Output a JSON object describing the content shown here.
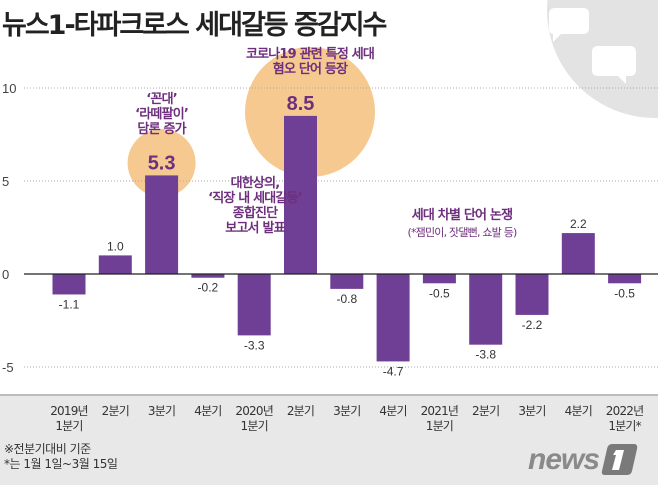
{
  "chart_data": {
    "type": "bar",
    "title": "뉴스1-타파크로스 세대갈등 증감지수",
    "categories": [
      [
        "2019년",
        "1분기"
      ],
      [
        "2분기"
      ],
      [
        "3분기"
      ],
      [
        "4분기"
      ],
      [
        "2020년",
        "1분기"
      ],
      [
        "2분기"
      ],
      [
        "3분기"
      ],
      [
        "4분기"
      ],
      [
        "2021년",
        "1분기"
      ],
      [
        "2분기"
      ],
      [
        "3분기"
      ],
      [
        "4분기"
      ],
      [
        "2022년",
        "1분기*"
      ]
    ],
    "values": [
      -1.1,
      1.0,
      5.3,
      -0.2,
      -3.3,
      8.5,
      -0.8,
      -4.7,
      -0.5,
      -3.8,
      -2.2,
      2.2,
      -0.5
    ],
    "value_labels": [
      "-1.1",
      "1.0",
      "5.3",
      "-0.2",
      "-3.3",
      "8.5",
      "-0.8",
      "-4.7",
      "-0.5",
      "-3.8",
      "-2.2",
      "2.2",
      "-0.5"
    ],
    "yticks": [
      10,
      5,
      0,
      -5
    ],
    "ylim": [
      -6,
      11
    ],
    "grid": true,
    "colors": {
      "bar": "#6e3f94",
      "highlight": "#f5c98f",
      "annotation_text": "#6e2f7e",
      "footer_bg": "#e8e8e8",
      "deco_circle": "#e3e3e3"
    },
    "annotations": [
      {
        "bar_index": 2,
        "lines": [
          "‘꼰대’",
          "‘라떼팔이’",
          "담론 증가"
        ]
      },
      {
        "bar_index": 5,
        "lines": [
          "코로나19 관련 특정 세대",
          "혐오 단어 등장"
        ]
      },
      {
        "bar_index": 4,
        "lines": [
          "대한상의,",
          "‘직장 내 세대갈등’",
          "종합진단",
          "보고서 발표"
        ]
      },
      {
        "bar_index": 9,
        "lines": [
          "세대 차별 단어 논쟁",
          "(*잼민이, 잣댈뻔, 쇼발 등)"
        ]
      }
    ]
  },
  "notes": [
    "※전분기대비 기준",
    "*는 1월 1일~3월 15일"
  ],
  "logo": "news1"
}
